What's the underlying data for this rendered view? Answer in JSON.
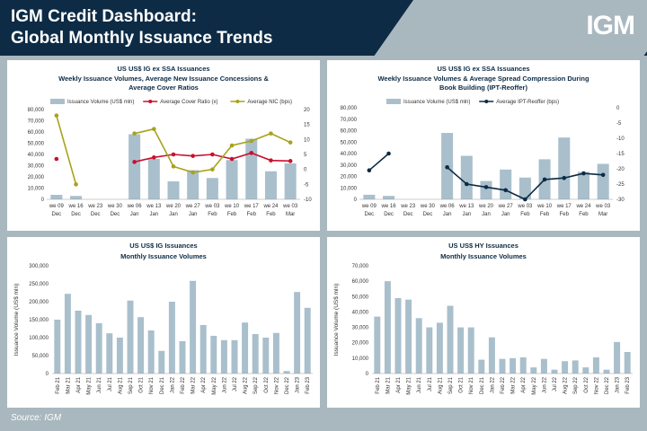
{
  "header": {
    "title_line1": "IGM Credit Dashboard:",
    "title_line2": "Global Monthly Issuance Trends",
    "logo": "IGM"
  },
  "footer": {
    "source": "Source: IGM"
  },
  "colors": {
    "bar": "#a9bfcc",
    "red": "#c8102e",
    "olive": "#a7a21c",
    "navy": "#0d2b45"
  },
  "chart_data": [
    {
      "type": "bar+line",
      "title": "US US$ IG ex SSA Issuances",
      "subtitle": "Weekly Issuance Volumes, Average New Issuance Concessions & Average Cover Ratios",
      "categories": [
        "we 09 Dec",
        "we 16 Dec",
        "we 23 Dec",
        "we 30 Dec",
        "we 06 Jan",
        "we 13 Jan",
        "we 20 Jan",
        "we 27 Jan",
        "we 03 Feb",
        "we 10 Feb",
        "we 17 Feb",
        "we 24 Feb",
        "we 03 Mar"
      ],
      "yticks": [
        "80,000",
        "70,000",
        "60,000",
        "50,000",
        "40,000",
        "30,000",
        "20,000",
        "10,000",
        "0"
      ],
      "y2ticks": [
        "20",
        "15",
        "10",
        "5",
        "0",
        "-5",
        "-10"
      ],
      "ylim": [
        0,
        80000
      ],
      "y2lim": [
        -10,
        20
      ],
      "series": [
        {
          "name": "Issuance Volume (US$ mln)",
          "kind": "bar",
          "values": [
            4000,
            3000,
            0,
            0,
            58000,
            36000,
            16000,
            26000,
            19000,
            35000,
            54000,
            25000,
            32000
          ]
        },
        {
          "name": "Average Cover Ratio (x)",
          "kind": "line",
          "axis": "right",
          "values": [
            3.5,
            null,
            null,
            null,
            2.5,
            4.0,
            5.0,
            4.5,
            5.0,
            3.5,
            5.5,
            3.0,
            2.8
          ]
        },
        {
          "name": "Average NIC (bps)",
          "kind": "line",
          "axis": "right",
          "values": [
            18,
            -5,
            null,
            null,
            12,
            13.5,
            1,
            -1,
            0,
            8,
            9.5,
            12,
            9
          ]
        }
      ]
    },
    {
      "type": "bar+line",
      "title": "US US$ IG ex SSA Issuances",
      "subtitle": "Weekly Issuance Volumes & Average Spread Compression During Book Building (IPT-Reoffer)",
      "categories": [
        "we 09 Dec",
        "we 16 Dec",
        "we 23 Dec",
        "we 30 Dec",
        "we 06 Jan",
        "we 13 Jan",
        "we 20 Jan",
        "we 27 Jan",
        "we 03 Feb",
        "we 10 Feb",
        "we 17 Feb",
        "we 24 Feb",
        "we 03 Mar"
      ],
      "yticks": [
        "80,000",
        "70,000",
        "60,000",
        "50,000",
        "40,000",
        "30,000",
        "20,000",
        "10,000",
        "0"
      ],
      "y2ticks": [
        "0",
        "-5",
        "-10",
        "-15",
        "-20",
        "-25",
        "-30"
      ],
      "ylim": [
        0,
        80000
      ],
      "y2lim": [
        -30,
        0
      ],
      "series": [
        {
          "name": "Issuance Volume (US$ mln)",
          "kind": "bar",
          "values": [
            4000,
            3000,
            0,
            0,
            58000,
            38000,
            16000,
            26000,
            19000,
            35000,
            54000,
            24000,
            31000
          ]
        },
        {
          "name": "Average IPT-Reoffer (bps)",
          "kind": "line",
          "axis": "right",
          "values": [
            -20.5,
            -15,
            null,
            null,
            -19.5,
            -25,
            -26,
            -27,
            -30,
            -23.5,
            -23,
            -21.5,
            -22
          ]
        }
      ]
    },
    {
      "type": "bar",
      "title": "US US$ IG Issuances",
      "subtitle": "Monthly Issuance Volumes",
      "ylabel": "Issuance Volume (US$ mln)",
      "categories": [
        "Feb 21",
        "Mar 21",
        "Apr 21",
        "May 21",
        "Jun 21",
        "Jul 21",
        "Aug 21",
        "Sep 21",
        "Oct 21",
        "Nov 21",
        "Dec 21",
        "Jan 22",
        "Feb 22",
        "Mar 22",
        "Apr 22",
        "May 22",
        "Jun 22",
        "Jul 22",
        "Aug 22",
        "Sep 22",
        "Oct 22",
        "Nov 22",
        "Dec 22",
        "Jan 23",
        "Feb 23"
      ],
      "yticks": [
        "300,000",
        "250,000",
        "200,000",
        "150,000",
        "100,000",
        "50,000",
        "0"
      ],
      "ylim": [
        0,
        300000
      ],
      "values": [
        150000,
        222000,
        175000,
        163000,
        140000,
        112000,
        100000,
        203000,
        157000,
        120000,
        63000,
        200000,
        90000,
        258000,
        135000,
        105000,
        93000,
        93000,
        142000,
        110000,
        100000,
        113000,
        7000,
        227000,
        183000
      ]
    },
    {
      "type": "bar",
      "title": "US US$ HY Issuances",
      "subtitle": "Monthly Issuance Volumes",
      "ylabel": "Issuance Volume (US$ mln)",
      "categories": [
        "Feb 21",
        "Mar 21",
        "Apr 21",
        "May 21",
        "Jun 21",
        "Jul 21",
        "Aug 21",
        "Sep 21",
        "Oct 21",
        "Nov 21",
        "Dec 21",
        "Jan 22",
        "Feb 22",
        "Mar 22",
        "Apr 22",
        "May 22",
        "Jun 22",
        "Jul 22",
        "Aug 22",
        "Sep 22",
        "Oct 22",
        "Nov 22",
        "Dec 22",
        "Jan 23",
        "Feb 23"
      ],
      "yticks": [
        "70,000",
        "60,000",
        "50,000",
        "40,000",
        "30,000",
        "20,000",
        "10,000",
        "0"
      ],
      "ylim": [
        0,
        70000
      ],
      "values": [
        37000,
        60000,
        49000,
        48000,
        36000,
        30000,
        33000,
        44000,
        30000,
        30000,
        9000,
        23500,
        9500,
        10000,
        10500,
        4000,
        9500,
        2500,
        8000,
        8500,
        4000,
        10500,
        2500,
        20500,
        14000
      ]
    }
  ]
}
